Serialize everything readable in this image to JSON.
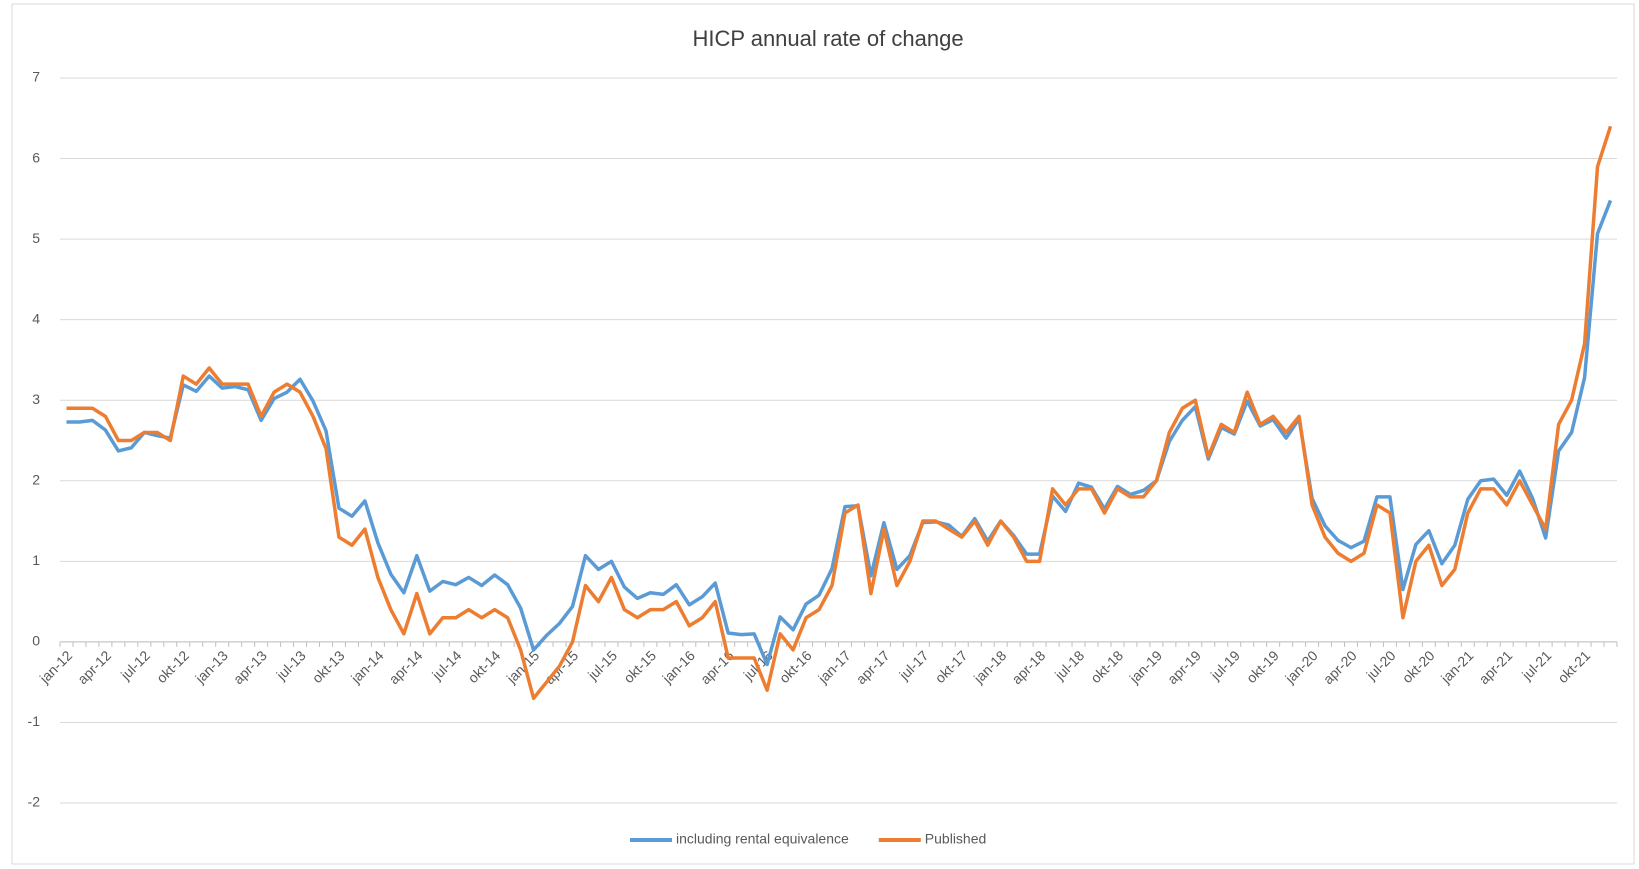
{
  "chart_data": {
    "type": "line",
    "title": "HICP annual rate of change",
    "categories": [
      "jan-12",
      null,
      null,
      "apr-12",
      null,
      null,
      "jul-12",
      null,
      null,
      "okt-12",
      null,
      null,
      "jan-13",
      null,
      null,
      "apr-13",
      null,
      null,
      "jul-13",
      null,
      null,
      "okt-13",
      null,
      null,
      "jan-14",
      null,
      null,
      "apr-14",
      null,
      null,
      "jul-14",
      null,
      null,
      "okt-14",
      null,
      null,
      "jan-15",
      null,
      null,
      "apr-15",
      null,
      null,
      "jul-15",
      null,
      null,
      "okt-15",
      null,
      null,
      "jan-16",
      null,
      null,
      "apr-16",
      null,
      null,
      "jul-16",
      null,
      null,
      "okt-16",
      null,
      null,
      "jan-17",
      null,
      null,
      "apr-17",
      null,
      null,
      "jul-17",
      null,
      null,
      "okt-17",
      null,
      null,
      "jan-18",
      null,
      null,
      "apr-18",
      null,
      null,
      "jul-18",
      null,
      null,
      "okt-18",
      null,
      null,
      "jan-19",
      null,
      null,
      "apr-19",
      null,
      null,
      "jul-19",
      null,
      null,
      "okt-19",
      null,
      null,
      "jan-20",
      null,
      null,
      "apr-20",
      null,
      null,
      "jul-20",
      null,
      null,
      "okt-20",
      null,
      null,
      "jan-21",
      null,
      null,
      "apr-21",
      null,
      null,
      "jul-21",
      null,
      null,
      "okt-21",
      null,
      null
    ],
    "series": [
      {
        "name": "including rental equivalence",
        "color": "#5b9bd5",
        "values": [
          2.73,
          2.73,
          2.75,
          2.63,
          2.37,
          2.41,
          2.6,
          2.56,
          2.53,
          3.19,
          3.11,
          3.3,
          3.15,
          3.17,
          3.13,
          2.75,
          3.02,
          3.1,
          3.26,
          2.99,
          2.62,
          1.66,
          1.56,
          1.75,
          1.23,
          0.84,
          0.61,
          1.07,
          0.63,
          0.75,
          0.71,
          0.8,
          0.7,
          0.83,
          0.71,
          0.42,
          -0.1,
          0.08,
          0.23,
          0.44,
          1.07,
          0.9,
          1.0,
          0.68,
          0.54,
          0.61,
          0.59,
          0.71,
          0.46,
          0.56,
          0.73,
          0.11,
          0.09,
          0.1,
          -0.28,
          0.31,
          0.15,
          0.47,
          0.58,
          0.91,
          1.68,
          1.69,
          0.82,
          1.48,
          0.9,
          1.07,
          1.48,
          1.49,
          1.45,
          1.31,
          1.53,
          1.25,
          1.5,
          1.32,
          1.09,
          1.09,
          1.81,
          1.62,
          1.97,
          1.92,
          1.65,
          1.93,
          1.83,
          1.88,
          2.0,
          2.49,
          2.75,
          2.92,
          2.27,
          2.66,
          2.58,
          2.99,
          2.68,
          2.76,
          2.53,
          2.77,
          1.78,
          1.44,
          1.26,
          1.17,
          1.25,
          1.8,
          1.8,
          0.65,
          1.21,
          1.38,
          0.97,
          1.2,
          1.77,
          2.0,
          2.02,
          1.82,
          2.12,
          1.78,
          1.29,
          2.37,
          2.6,
          3.28,
          5.07,
          5.48
        ]
      },
      {
        "name": "Published",
        "color": "#ed7d31",
        "values": [
          2.9,
          2.9,
          2.9,
          2.8,
          2.5,
          2.5,
          2.6,
          2.6,
          2.5,
          3.3,
          3.2,
          3.4,
          3.2,
          3.2,
          3.2,
          2.8,
          3.1,
          3.2,
          3.1,
          2.8,
          2.4,
          1.3,
          1.2,
          1.4,
          0.8,
          0.4,
          0.1,
          0.6,
          0.1,
          0.3,
          0.3,
          0.4,
          0.3,
          0.4,
          0.3,
          -0.1,
          -0.7,
          -0.5,
          -0.3,
          0.0,
          0.7,
          0.5,
          0.8,
          0.4,
          0.3,
          0.4,
          0.4,
          0.5,
          0.2,
          0.3,
          0.5,
          -0.2,
          -0.2,
          -0.2,
          -0.6,
          0.1,
          -0.1,
          0.3,
          0.4,
          0.7,
          1.6,
          1.7,
          0.6,
          1.4,
          0.7,
          1.0,
          1.5,
          1.5,
          1.4,
          1.3,
          1.5,
          1.2,
          1.5,
          1.3,
          1.0,
          1.0,
          1.9,
          1.7,
          1.9,
          1.9,
          1.6,
          1.9,
          1.8,
          1.8,
          2.0,
          2.6,
          2.9,
          3.0,
          2.3,
          2.7,
          2.6,
          3.1,
          2.7,
          2.8,
          2.6,
          2.8,
          1.7,
          1.3,
          1.1,
          1.0,
          1.1,
          1.7,
          1.6,
          0.3,
          1.0,
          1.2,
          0.7,
          0.9,
          1.6,
          1.9,
          1.9,
          1.7,
          2.0,
          1.7,
          1.4,
          2.7,
          3.0,
          3.7,
          5.9,
          6.4
        ]
      }
    ],
    "ylim": [
      -2,
      7
    ],
    "yticks": [
      -2,
      -1,
      0,
      1,
      2,
      3,
      4,
      5,
      6,
      7
    ],
    "grid": true,
    "legend": "bottom"
  }
}
